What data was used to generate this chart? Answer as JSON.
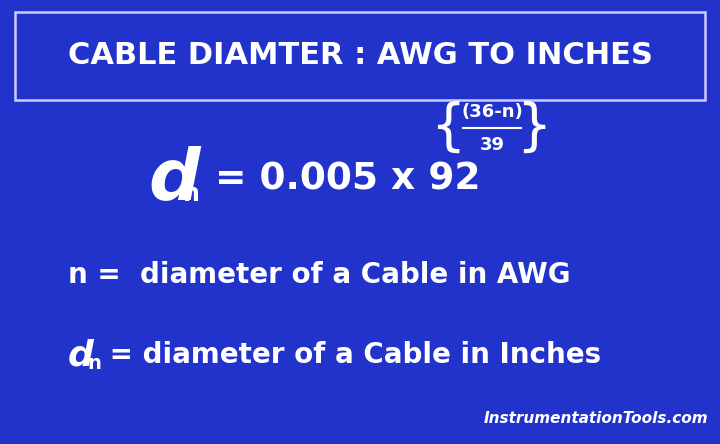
{
  "background_color": "#2233CC",
  "title_text": "CABLE DIAMTER : AWG TO INCHES",
  "title_box_edge_color": "#CCCCFF",
  "title_text_color": "#FFFFFF",
  "exponent_numerator": "(36-n)",
  "exponent_denominator": "39",
  "note1": "n =  diameter of a Cable in AWG",
  "note2_rest": " = diameter of a Cable in Inches",
  "watermark": "InstrumentationTools.com",
  "text_color": "#FFFFFF"
}
